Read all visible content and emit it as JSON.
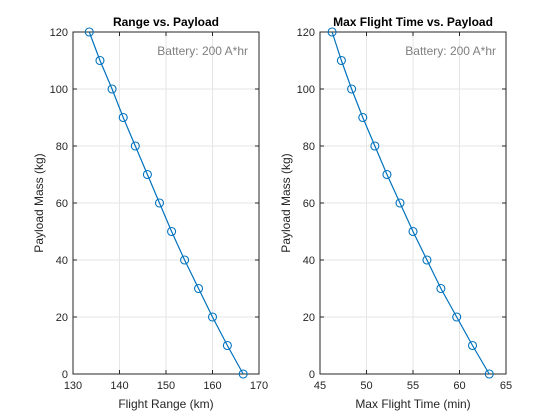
{
  "chart_data": [
    {
      "type": "line",
      "title": "Range vs. Payload",
      "xlabel": "Flight Range (km)",
      "ylabel": "Payload Mass (kg)",
      "xlim": [
        130,
        170
      ],
      "ylim": [
        0,
        120
      ],
      "xticks": [
        "130",
        "140",
        "150",
        "160",
        "170"
      ],
      "yticks": [
        "0",
        "20",
        "40",
        "60",
        "80",
        "100",
        "120"
      ],
      "grid": true,
      "annotation": "Battery: 200 A*hr",
      "marker": "circle",
      "color": "#0072BD",
      "series": [
        {
          "x": [
            133.5,
            135.8,
            138.4,
            140.8,
            143.4,
            146.0,
            148.6,
            151.2,
            154.0,
            157.0,
            160.0,
            163.2,
            166.6
          ],
          "y": [
            120,
            110,
            100,
            90,
            80,
            70,
            60,
            50,
            40,
            30,
            20,
            10,
            0
          ]
        }
      ]
    },
    {
      "type": "line",
      "title": "Max Flight Time vs. Payload",
      "xlabel": "Max Flight Time (min)",
      "ylabel": "Payload Mass (kg)",
      "xlim": [
        45,
        65
      ],
      "ylim": [
        0,
        120
      ],
      "xticks": [
        "45",
        "50",
        "55",
        "60",
        "65"
      ],
      "yticks": [
        "0",
        "20",
        "40",
        "60",
        "80",
        "100",
        "120"
      ],
      "grid": true,
      "annotation": "Battery: 200 A*hr",
      "marker": "circle",
      "color": "#0072BD",
      "series": [
        {
          "x": [
            46.3,
            47.3,
            48.4,
            49.6,
            50.9,
            52.2,
            53.6,
            55.0,
            56.5,
            58.0,
            59.7,
            61.4,
            63.2
          ],
          "y": [
            120,
            110,
            100,
            90,
            80,
            70,
            60,
            50,
            40,
            30,
            20,
            10,
            0
          ]
        }
      ]
    }
  ]
}
